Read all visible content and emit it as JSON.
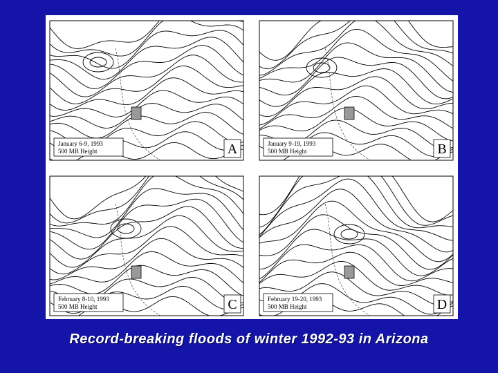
{
  "panels": [
    {
      "date": "January 6-9, 1993",
      "subtitle": "500 MB Height",
      "letter": "A"
    },
    {
      "date": "January 9-19, 1993",
      "subtitle": "500 MB Height",
      "letter": "B"
    },
    {
      "date": "February 8-10, 1993",
      "subtitle": "500 MB Height",
      "letter": "C"
    },
    {
      "date": "February 19-20, 1993",
      "subtitle": "500 MB Height",
      "letter": "D"
    }
  ],
  "caption": "Record-breaking floods of winter 1992-93 in Arizona"
}
